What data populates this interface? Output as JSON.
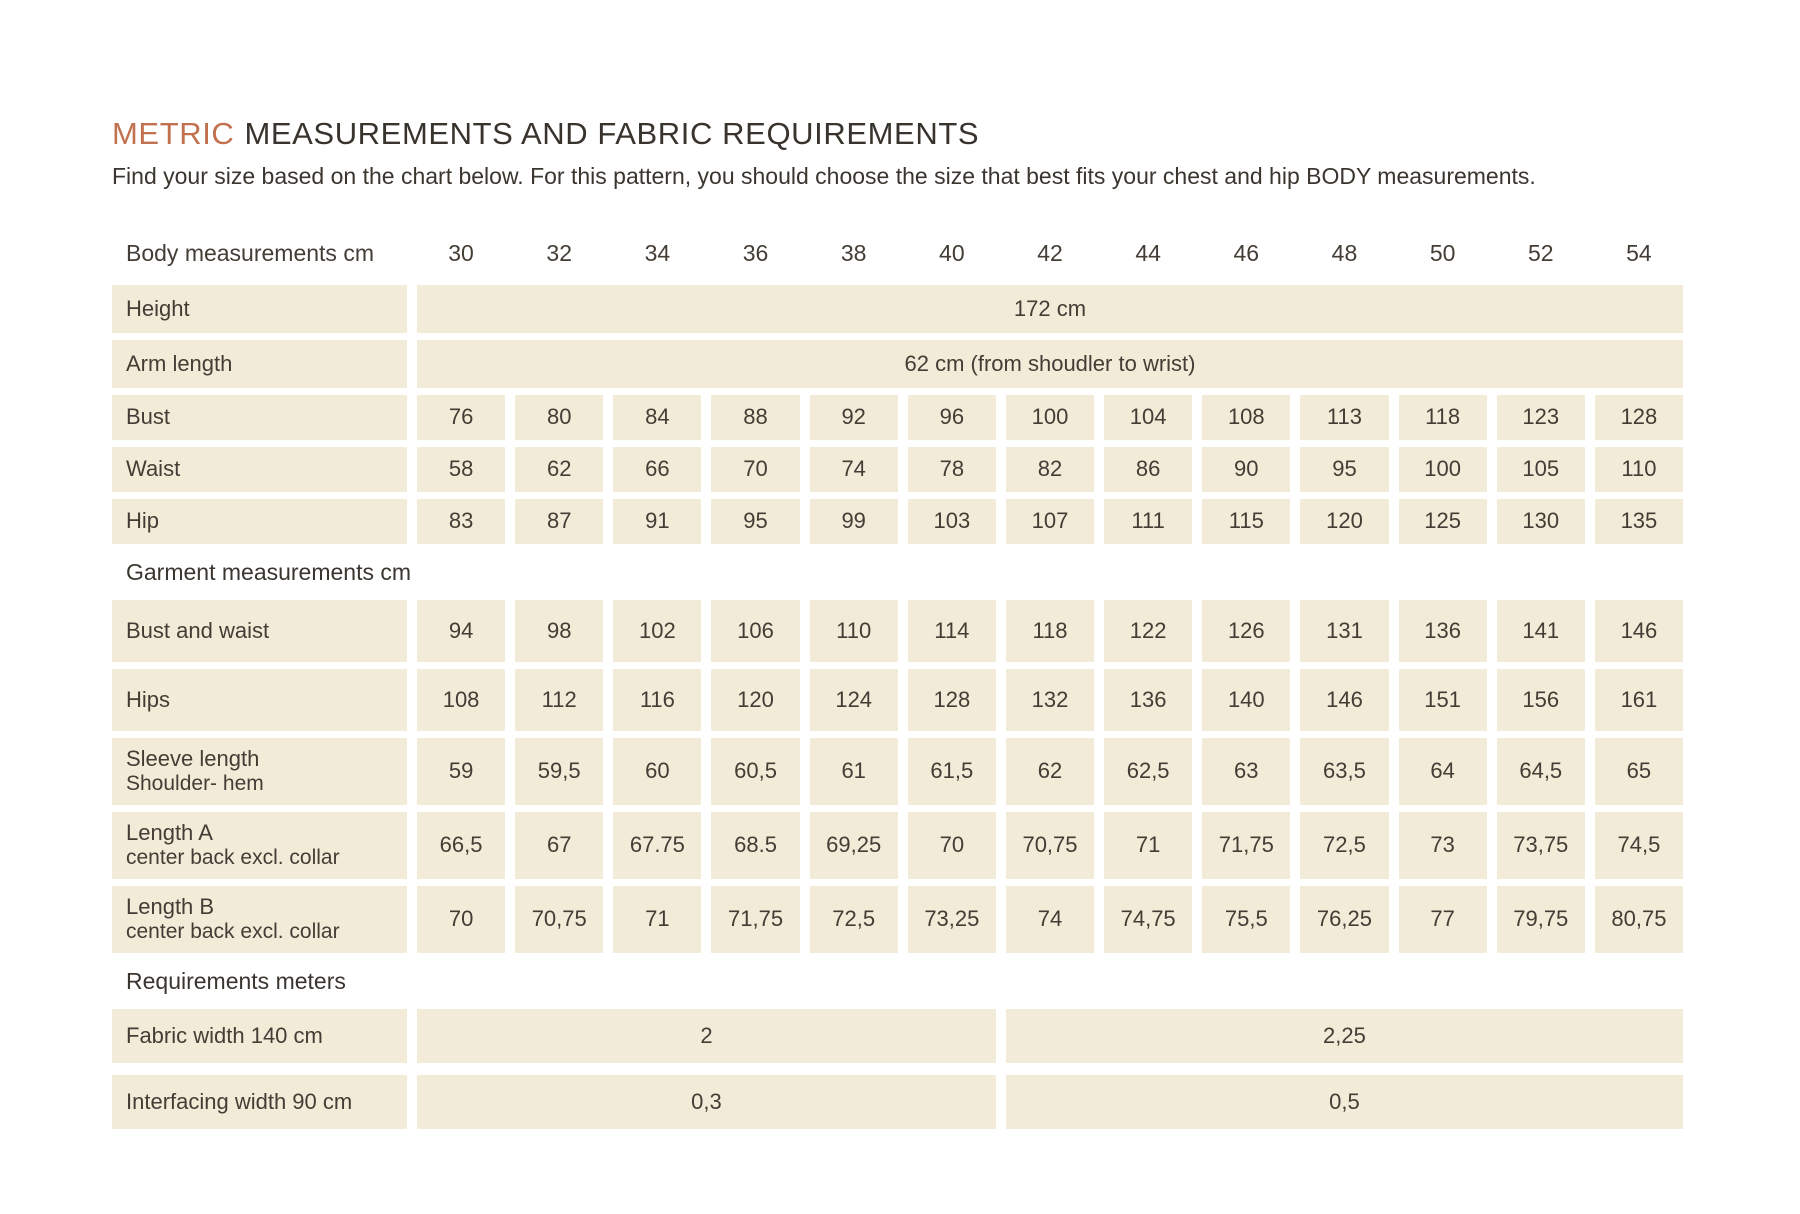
{
  "page": {
    "title_highlight": "METRIC",
    "title_rest": "MEASUREMENTS AND FABRIC REQUIREMENTS",
    "subtitle": "Find your size based on the chart below. For this pattern, you should choose the size that best fits your chest and hip BODY measurements."
  },
  "colors": {
    "accent_orange": "#c1714e",
    "cell_beige": "#f2ebd8",
    "text_dark": "#3e3830"
  },
  "table": {
    "header_label": "Body measurements cm",
    "sizes": [
      "30",
      "32",
      "34",
      "36",
      "38",
      "40",
      "42",
      "44",
      "46",
      "48",
      "50",
      "52",
      "54"
    ],
    "rows": [
      {
        "type": "span",
        "label": "Height",
        "value": "172 cm"
      },
      {
        "type": "span",
        "label": "Arm length",
        "value": "62 cm (from shoudler to wrist)"
      },
      {
        "type": "cells",
        "label": "Bust",
        "values": [
          "76",
          "80",
          "84",
          "88",
          "92",
          "96",
          "100",
          "104",
          "108",
          "113",
          "118",
          "123",
          "128"
        ]
      },
      {
        "type": "cells",
        "label": "Waist",
        "values": [
          "58",
          "62",
          "66",
          "70",
          "74",
          "78",
          "82",
          "86",
          "90",
          "95",
          "100",
          "105",
          "110"
        ]
      },
      {
        "type": "cells",
        "label": "Hip",
        "values": [
          "83",
          "87",
          "91",
          "95",
          "99",
          "103",
          "107",
          "111",
          "115",
          "120",
          "125",
          "130",
          "135"
        ]
      },
      {
        "type": "section",
        "label": "Garment measurements cm"
      },
      {
        "type": "cells",
        "tall": true,
        "label": "Bust and waist",
        "values": [
          "94",
          "98",
          "102",
          "106",
          "110",
          "114",
          "118",
          "122",
          "126",
          "131",
          "136",
          "141",
          "146"
        ]
      },
      {
        "type": "cells",
        "tall": true,
        "label": "Hips",
        "values": [
          "108",
          "112",
          "116",
          "120",
          "124",
          "128",
          "132",
          "136",
          "140",
          "146",
          "151",
          "156",
          "161"
        ]
      },
      {
        "type": "cells",
        "label": "Sleeve length",
        "label2": "Shoulder- hem",
        "values": [
          "59",
          "59,5",
          "60",
          "60,5",
          "61",
          "61,5",
          "62",
          "62,5",
          "63",
          "63,5",
          "64",
          "64,5",
          "65"
        ]
      },
      {
        "type": "cells",
        "label": "Length A",
        "label2": "center back excl. collar",
        "values": [
          "66,5",
          "67",
          "67.75",
          "68.5",
          "69,25",
          "70",
          "70,75",
          "71",
          "71,75",
          "72,5",
          "73",
          "73,75",
          "74,5"
        ]
      },
      {
        "type": "cells",
        "label": "Length B",
        "label2": "center back excl. collar",
        "values": [
          "70",
          "70,75",
          "71",
          "71,75",
          "72,5",
          "73,25",
          "74",
          "74,75",
          "75,5",
          "76,25",
          "77",
          "79,75",
          "80,75"
        ]
      },
      {
        "type": "section",
        "label": "Requirements meters"
      },
      {
        "type": "split",
        "label": "Fabric width 140 cm",
        "value_left": "2",
        "value_right": "2,25"
      },
      {
        "type": "split",
        "label": "Interfacing width 90 cm",
        "value_left": "0,3",
        "value_right": "0,5"
      }
    ]
  }
}
